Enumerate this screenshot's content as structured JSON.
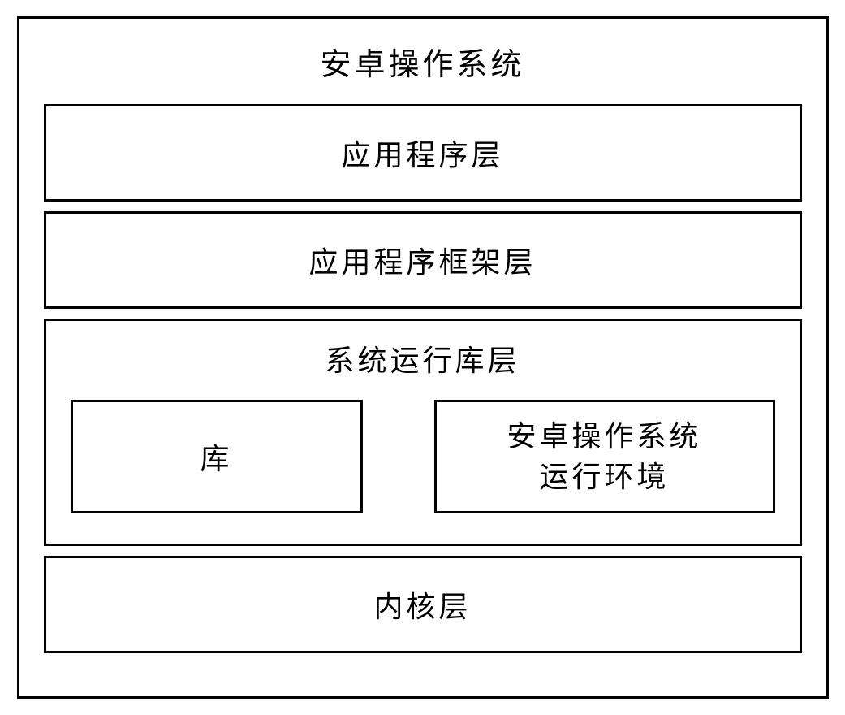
{
  "diagram": {
    "type": "layered-architecture",
    "title": "安卓操作系统",
    "layers": [
      {
        "id": "application",
        "label": "应用程序层"
      },
      {
        "id": "framework",
        "label": "应用程序框架层"
      },
      {
        "id": "runtime",
        "label": "系统运行库层",
        "sublayers": [
          {
            "id": "library",
            "label": "库"
          },
          {
            "id": "android-runtime",
            "label_line1": "安卓操作系统",
            "label_line2": "运行环境"
          }
        ]
      },
      {
        "id": "kernel",
        "label": "内核层"
      }
    ],
    "styling": {
      "border_color": "#000000",
      "border_width": 3,
      "background_color": "#ffffff",
      "font_family": "SimSun",
      "title_fontsize": 38,
      "layer_fontsize": 36,
      "letter_spacing": 4,
      "outer_width": 1000,
      "outer_height": 840,
      "layer_gap": 12,
      "layer_height": 120,
      "runtime_layer_height": 280,
      "sub_box_height": 140
    }
  }
}
